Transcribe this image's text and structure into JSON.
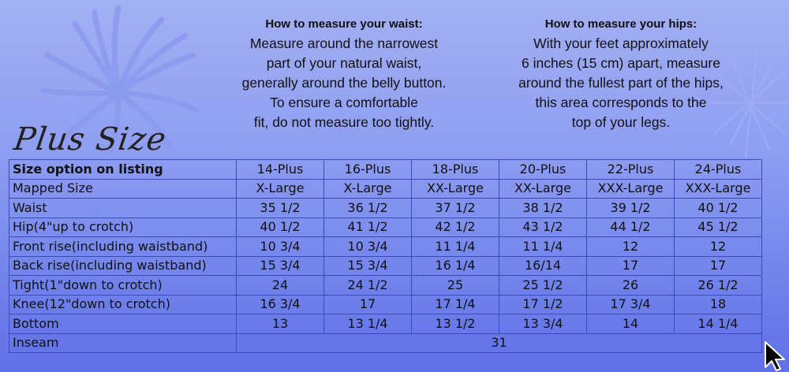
{
  "info": {
    "waist": {
      "title": "How to measure your waist:",
      "lines": [
        "Measure around the narrowest",
        "part of your natural waist,",
        "generally around the belly button.",
        "To ensure a comfortable",
        "fit, do not measure too tightly."
      ]
    },
    "hips": {
      "title": "How to measure your hips:",
      "lines": [
        "With your feet approximately",
        "6 inches (15 cm) apart, measure",
        "around the fullest part of the hips,",
        "this area corresponds to the",
        "top of your legs."
      ]
    }
  },
  "brand_title": "Plus Size",
  "table": {
    "header": {
      "label": "Size option on listing",
      "values": [
        "14-Plus",
        "16-Plus",
        "18-Plus",
        "20-Plus",
        "22-Plus",
        "24-Plus"
      ]
    },
    "rows": [
      {
        "label": "Mapped Size",
        "values": [
          "X-Large",
          "X-Large",
          "XX-Large",
          "XX-Large",
          "XXX-Large",
          "XXX-Large"
        ]
      },
      {
        "label": "Waist",
        "values": [
          "35 1/2",
          "36 1/2",
          "37 1/2",
          "38 1/2",
          "39 1/2",
          "40 1/2"
        ]
      },
      {
        "label": "Hip(4\"up to crotch)",
        "values": [
          "40 1/2",
          "41 1/2",
          "42 1/2",
          "43 1/2",
          "44 1/2",
          "45 1/2"
        ]
      },
      {
        "label": "Front rise(including waistband)",
        "values": [
          "10 3/4",
          "10 3/4",
          "11 1/4",
          "11 1/4",
          "12",
          "12"
        ]
      },
      {
        "label": "Back rise(including waistband)",
        "values": [
          "15 3/4",
          "15 3/4",
          "16 1/4",
          "16/14",
          "17",
          "17"
        ]
      },
      {
        "label": "Tight(1\"down to crotch)",
        "values": [
          "24",
          "24 1/2",
          "25",
          "25 1/2",
          "26",
          "26 1/2"
        ]
      },
      {
        "label": "Knee(12\"down to crotch)",
        "values": [
          "16 3/4",
          "17",
          "17 1/4",
          "17 1/2",
          "17 3/4",
          "18"
        ]
      },
      {
        "label": "Bottom",
        "values": [
          "13",
          "13 1/4",
          "13 1/2",
          "13 3/4",
          "14",
          "14 1/4"
        ]
      }
    ],
    "inseam": {
      "label": "Inseam",
      "value": "31"
    }
  },
  "icons": {
    "decoration_left": "palm-burst-icon",
    "decoration_right": "star-burst-icon",
    "cursor": "mouse-pointer-icon"
  }
}
